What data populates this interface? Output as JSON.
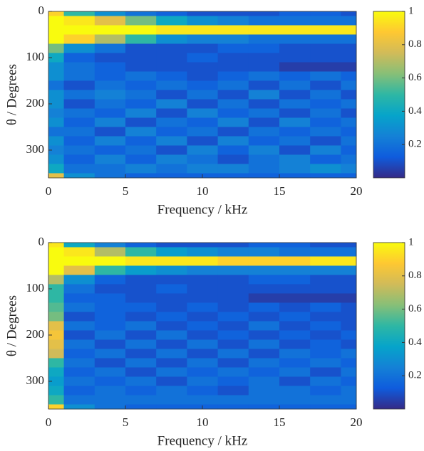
{
  "chart_data": [
    {
      "type": "heatmap",
      "xlabel": "Frequency / kHz",
      "ylabel": "θ / Degrees",
      "x": [
        0,
        2,
        4,
        6,
        8,
        10,
        12,
        14,
        16,
        18,
        20
      ],
      "y": [
        0,
        20,
        40,
        60,
        80,
        100,
        120,
        140,
        160,
        180,
        200,
        220,
        240,
        260,
        280,
        300,
        320,
        340,
        360
      ],
      "z": [
        [
          0.9,
          0.5,
          0.3,
          0.2,
          0.15,
          0.1,
          0.1,
          0.1,
          0.15,
          0.15,
          0.1
        ],
        [
          1,
          0.95,
          0.8,
          0.6,
          0.4,
          0.3,
          0.25,
          0.2,
          0.2,
          0.2,
          0.2
        ],
        [
          1,
          1,
          1,
          1,
          0.95,
          0.95,
          0.95,
          0.95,
          0.95,
          0.95,
          0.95
        ],
        [
          1,
          0.9,
          0.7,
          0.5,
          0.3,
          0.25,
          0.25,
          0.2,
          0.2,
          0.2,
          0.2
        ],
        [
          0.6,
          0.3,
          0.2,
          0.1,
          0.1,
          0.1,
          0.15,
          0.15,
          0.1,
          0.1,
          0.1
        ],
        [
          0.4,
          0.15,
          0.1,
          0.1,
          0.1,
          0.15,
          0.1,
          0.1,
          0.1,
          0.1,
          0.1
        ],
        [
          0.3,
          0.2,
          0.15,
          0.1,
          0.1,
          0.1,
          0.1,
          0.1,
          0.05,
          0.05,
          0.05
        ],
        [
          0.3,
          0.2,
          0.15,
          0.2,
          0.15,
          0.1,
          0.15,
          0.2,
          0.15,
          0.2,
          0.15
        ],
        [
          0.2,
          0.1,
          0.2,
          0.15,
          0.2,
          0.15,
          0.2,
          0.1,
          0.2,
          0.1,
          0.2
        ],
        [
          0.3,
          0.2,
          0.25,
          0.2,
          0.1,
          0.2,
          0.1,
          0.25,
          0.1,
          0.2,
          0.1
        ],
        [
          0.3,
          0.1,
          0.2,
          0.15,
          0.25,
          0.1,
          0.2,
          0.1,
          0.2,
          0.15,
          0.2
        ],
        [
          0.25,
          0.2,
          0.15,
          0.25,
          0.1,
          0.25,
          0.15,
          0.2,
          0.1,
          0.2,
          0.1
        ],
        [
          0.3,
          0.15,
          0.25,
          0.1,
          0.2,
          0.15,
          0.25,
          0.1,
          0.25,
          0.15,
          0.2
        ],
        [
          0.2,
          0.2,
          0.1,
          0.25,
          0.15,
          0.2,
          0.1,
          0.2,
          0.15,
          0.2,
          0.15
        ],
        [
          0.3,
          0.15,
          0.25,
          0.15,
          0.25,
          0.1,
          0.25,
          0.15,
          0.2,
          0.1,
          0.2
        ],
        [
          0.25,
          0.2,
          0.15,
          0.2,
          0.1,
          0.25,
          0.15,
          0.25,
          0.1,
          0.25,
          0.15
        ],
        [
          0.3,
          0.15,
          0.25,
          0.15,
          0.25,
          0.2,
          0.1,
          0.2,
          0.25,
          0.15,
          0.2
        ],
        [
          0.4,
          0.2,
          0.2,
          0.25,
          0.2,
          0.25,
          0.25,
          0.2,
          0.25,
          0.3,
          0.25
        ],
        [
          0.8,
          0.3,
          0.2,
          0.15,
          0.15,
          0.15,
          0.15,
          0.15,
          0.15,
          0.15,
          0.15
        ]
      ],
      "xlim": [
        0,
        20
      ],
      "xticks": [
        0,
        5,
        10,
        15,
        20
      ],
      "ylim": [
        0,
        360
      ],
      "yticks": [
        0,
        100,
        200,
        300
      ],
      "y_inverted": true,
      "clim": [
        0,
        1
      ],
      "cticks": [
        0.2,
        0.4,
        0.6,
        0.8,
        1
      ],
      "colormap": [
        "#352a87",
        "#0f5cdd",
        "#1481d6",
        "#06a4ca",
        "#2eb7a4",
        "#87bf77",
        "#d1bb59",
        "#fec832",
        "#f9fb0e"
      ]
    },
    {
      "type": "heatmap",
      "xlabel": "Frequency / kHz",
      "ylabel": "θ / Degrees",
      "x": [
        0,
        2,
        4,
        6,
        8,
        10,
        12,
        14,
        16,
        18,
        20
      ],
      "y": [
        0,
        20,
        40,
        60,
        80,
        100,
        120,
        140,
        160,
        180,
        200,
        220,
        240,
        260,
        280,
        300,
        320,
        340,
        360
      ],
      "z": [
        [
          0.95,
          0.4,
          0.25,
          0.15,
          0.1,
          0.1,
          0.1,
          0.15,
          0.15,
          0.1,
          0.1
        ],
        [
          1,
          0.95,
          0.7,
          0.5,
          0.35,
          0.3,
          0.25,
          0.25,
          0.2,
          0.2,
          0.2
        ],
        [
          1,
          1,
          1,
          0.95,
          0.95,
          0.95,
          0.9,
          0.9,
          0.9,
          0.95,
          0.95
        ],
        [
          1,
          0.8,
          0.5,
          0.35,
          0.3,
          0.25,
          0.25,
          0.25,
          0.25,
          0.25,
          0.25
        ],
        [
          0.7,
          0.3,
          0.15,
          0.1,
          0.1,
          0.1,
          0.1,
          0.15,
          0.15,
          0.1,
          0.1
        ],
        [
          0.5,
          0.2,
          0.1,
          0.1,
          0.15,
          0.1,
          0.1,
          0.1,
          0.1,
          0.1,
          0.1
        ],
        [
          0.5,
          0.15,
          0.15,
          0.1,
          0.1,
          0.1,
          0.1,
          0.05,
          0.05,
          0.05,
          0.05
        ],
        [
          0.55,
          0.2,
          0.15,
          0.15,
          0.1,
          0.15,
          0.1,
          0.15,
          0.1,
          0.15,
          0.1
        ],
        [
          0.6,
          0.1,
          0.15,
          0.1,
          0.15,
          0.1,
          0.15,
          0.1,
          0.15,
          0.1,
          0.1
        ],
        [
          0.8,
          0.2,
          0.15,
          0.2,
          0.1,
          0.15,
          0.1,
          0.2,
          0.1,
          0.15,
          0.1
        ],
        [
          0.85,
          0.1,
          0.2,
          0.1,
          0.2,
          0.1,
          0.15,
          0.1,
          0.15,
          0.1,
          0.15
        ],
        [
          0.8,
          0.2,
          0.1,
          0.2,
          0.1,
          0.2,
          0.1,
          0.2,
          0.1,
          0.15,
          0.1
        ],
        [
          0.75,
          0.15,
          0.2,
          0.1,
          0.2,
          0.1,
          0.2,
          0.1,
          0.2,
          0.15,
          0.2
        ],
        [
          0.5,
          0.2,
          0.1,
          0.2,
          0.1,
          0.2,
          0.1,
          0.2,
          0.15,
          0.2,
          0.15
        ],
        [
          0.4,
          0.15,
          0.2,
          0.1,
          0.2,
          0.15,
          0.2,
          0.15,
          0.2,
          0.1,
          0.2
        ],
        [
          0.35,
          0.2,
          0.15,
          0.2,
          0.1,
          0.2,
          0.15,
          0.2,
          0.1,
          0.2,
          0.15
        ],
        [
          0.4,
          0.15,
          0.2,
          0.15,
          0.2,
          0.15,
          0.1,
          0.2,
          0.2,
          0.15,
          0.2
        ],
        [
          0.5,
          0.2,
          0.2,
          0.2,
          0.2,
          0.2,
          0.2,
          0.2,
          0.2,
          0.2,
          0.2
        ],
        [
          0.9,
          0.3,
          0.2,
          0.15,
          0.15,
          0.15,
          0.15,
          0.15,
          0.15,
          0.15,
          0.15
        ]
      ],
      "xlim": [
        0,
        20
      ],
      "xticks": [
        0,
        5,
        10,
        15,
        20
      ],
      "ylim": [
        0,
        360
      ],
      "yticks": [
        0,
        100,
        200,
        300
      ],
      "y_inverted": true,
      "clim": [
        0,
        1
      ],
      "cticks": [
        0.2,
        0.4,
        0.6,
        0.8,
        1
      ],
      "colormap": [
        "#352a87",
        "#0f5cdd",
        "#1481d6",
        "#06a4ca",
        "#2eb7a4",
        "#87bf77",
        "#d1bb59",
        "#fec832",
        "#f9fb0e"
      ]
    }
  ]
}
